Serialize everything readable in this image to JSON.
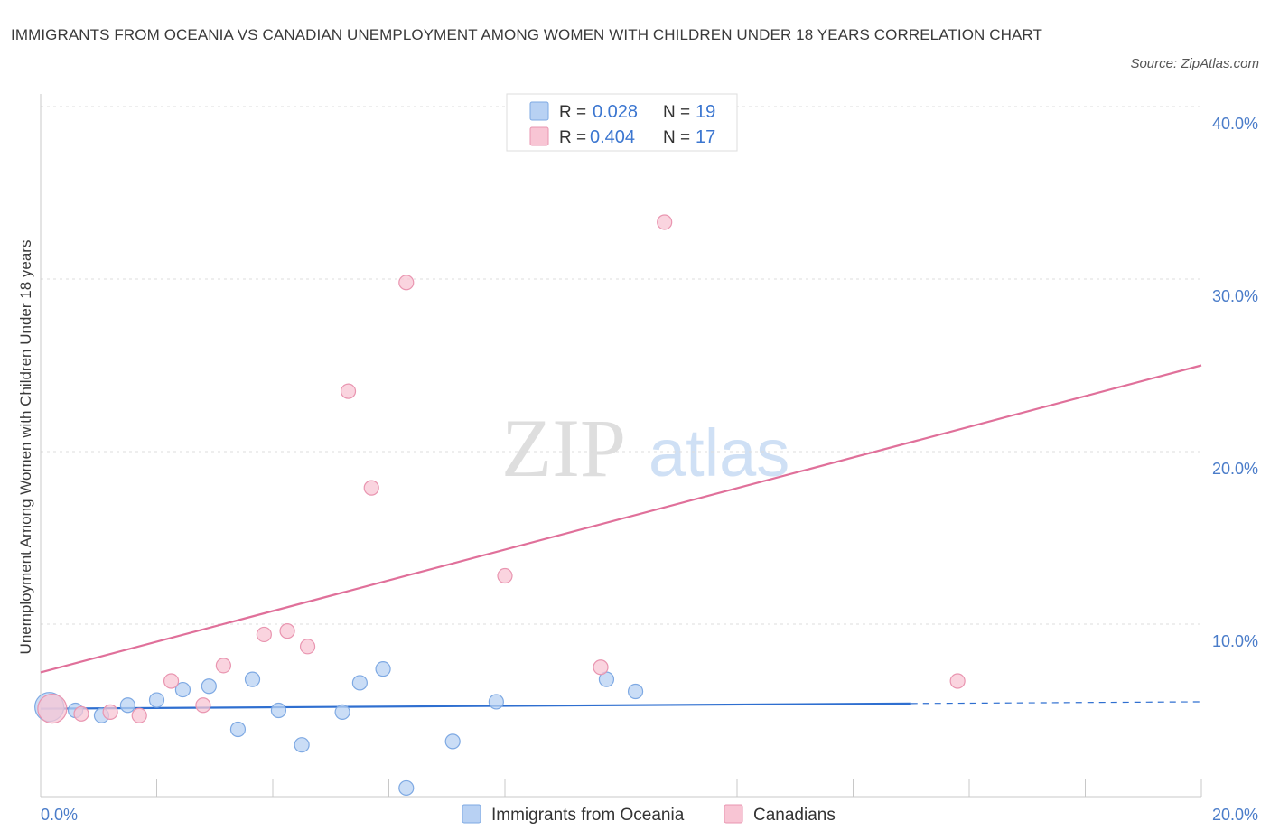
{
  "header": {
    "title": "IMMIGRANTS FROM OCEANIA VS CANADIAN UNEMPLOYMENT AMONG WOMEN WITH CHILDREN UNDER 18 YEARS CORRELATION CHART",
    "source": "Source: ZipAtlas.com"
  },
  "watermark": {
    "zip": "ZIP",
    "atlas": "atlas"
  },
  "legend": {
    "r_label": "R =",
    "n_label": "N =",
    "blue": {
      "r": "0.028",
      "n": "19"
    },
    "pink": {
      "r": "0.404",
      "n": "17"
    }
  },
  "colors": {
    "blue_fill": "#b8d1f3",
    "blue_stroke": "#7ea9e3",
    "blue_line": "#2f6fd0",
    "pink_fill": "#f8c5d4",
    "pink_stroke": "#e995b0",
    "pink_line": "#e0709a",
    "tick_text": "#4a7cc9"
  },
  "chart_data": {
    "type": "scatter",
    "title": "IMMIGRANTS FROM OCEANIA VS CANADIAN UNEMPLOYMENT AMONG WOMEN WITH CHILDREN UNDER 18 YEARS CORRELATION CHART",
    "xlabel": "",
    "ylabel": "Unemployment Among Women with Children Under 18 years",
    "xlim": [
      0,
      20
    ],
    "ylim": [
      0,
      40
    ],
    "x_ticks": [
      "0.0%",
      "20.0%"
    ],
    "y_ticks": [
      {
        "value": 10,
        "label": "10.0%"
      },
      {
        "value": 20,
        "label": "20.0%"
      },
      {
        "value": 30,
        "label": "30.0%"
      },
      {
        "value": 40,
        "label": "40.0%"
      }
    ],
    "series": [
      {
        "name": "Immigrants from Oceania",
        "color": "blue",
        "points": [
          {
            "x": 0.15,
            "y": 5.2,
            "big": true
          },
          {
            "x": 0.6,
            "y": 5.0
          },
          {
            "x": 1.05,
            "y": 4.7
          },
          {
            "x": 1.5,
            "y": 5.3
          },
          {
            "x": 2.0,
            "y": 5.6
          },
          {
            "x": 2.45,
            "y": 6.2
          },
          {
            "x": 2.9,
            "y": 6.4
          },
          {
            "x": 3.4,
            "y": 3.9
          },
          {
            "x": 3.65,
            "y": 6.8
          },
          {
            "x": 4.1,
            "y": 5.0
          },
          {
            "x": 4.5,
            "y": 3.0
          },
          {
            "x": 5.2,
            "y": 4.9
          },
          {
            "x": 5.5,
            "y": 6.6
          },
          {
            "x": 5.9,
            "y": 7.4
          },
          {
            "x": 6.3,
            "y": 0.5
          },
          {
            "x": 7.1,
            "y": 3.2
          },
          {
            "x": 7.85,
            "y": 5.5
          },
          {
            "x": 9.75,
            "y": 6.8
          },
          {
            "x": 10.25,
            "y": 6.1
          }
        ],
        "trend": {
          "x0": 0,
          "y0": 5.1,
          "x1": 15.0,
          "y1": 5.4,
          "dash_to": 20,
          "dash_y": 5.5
        }
      },
      {
        "name": "Canadians",
        "color": "pink",
        "points": [
          {
            "x": 0.2,
            "y": 5.1,
            "big": true
          },
          {
            "x": 0.7,
            "y": 4.8
          },
          {
            "x": 1.2,
            "y": 4.9
          },
          {
            "x": 1.7,
            "y": 4.7
          },
          {
            "x": 2.25,
            "y": 6.7
          },
          {
            "x": 2.8,
            "y": 5.3
          },
          {
            "x": 3.15,
            "y": 7.6
          },
          {
            "x": 3.85,
            "y": 9.4
          },
          {
            "x": 4.25,
            "y": 9.6
          },
          {
            "x": 4.6,
            "y": 8.7
          },
          {
            "x": 5.3,
            "y": 23.5
          },
          {
            "x": 5.7,
            "y": 17.9
          },
          {
            "x": 6.3,
            "y": 29.8
          },
          {
            "x": 8.0,
            "y": 12.8
          },
          {
            "x": 9.65,
            "y": 7.5
          },
          {
            "x": 10.75,
            "y": 33.3
          },
          {
            "x": 15.8,
            "y": 6.7
          }
        ],
        "trend": {
          "x0": 0,
          "y0": 7.2,
          "x1": 20,
          "y1": 25.0
        }
      }
    ],
    "legend_position": "top-center",
    "grid": true
  }
}
